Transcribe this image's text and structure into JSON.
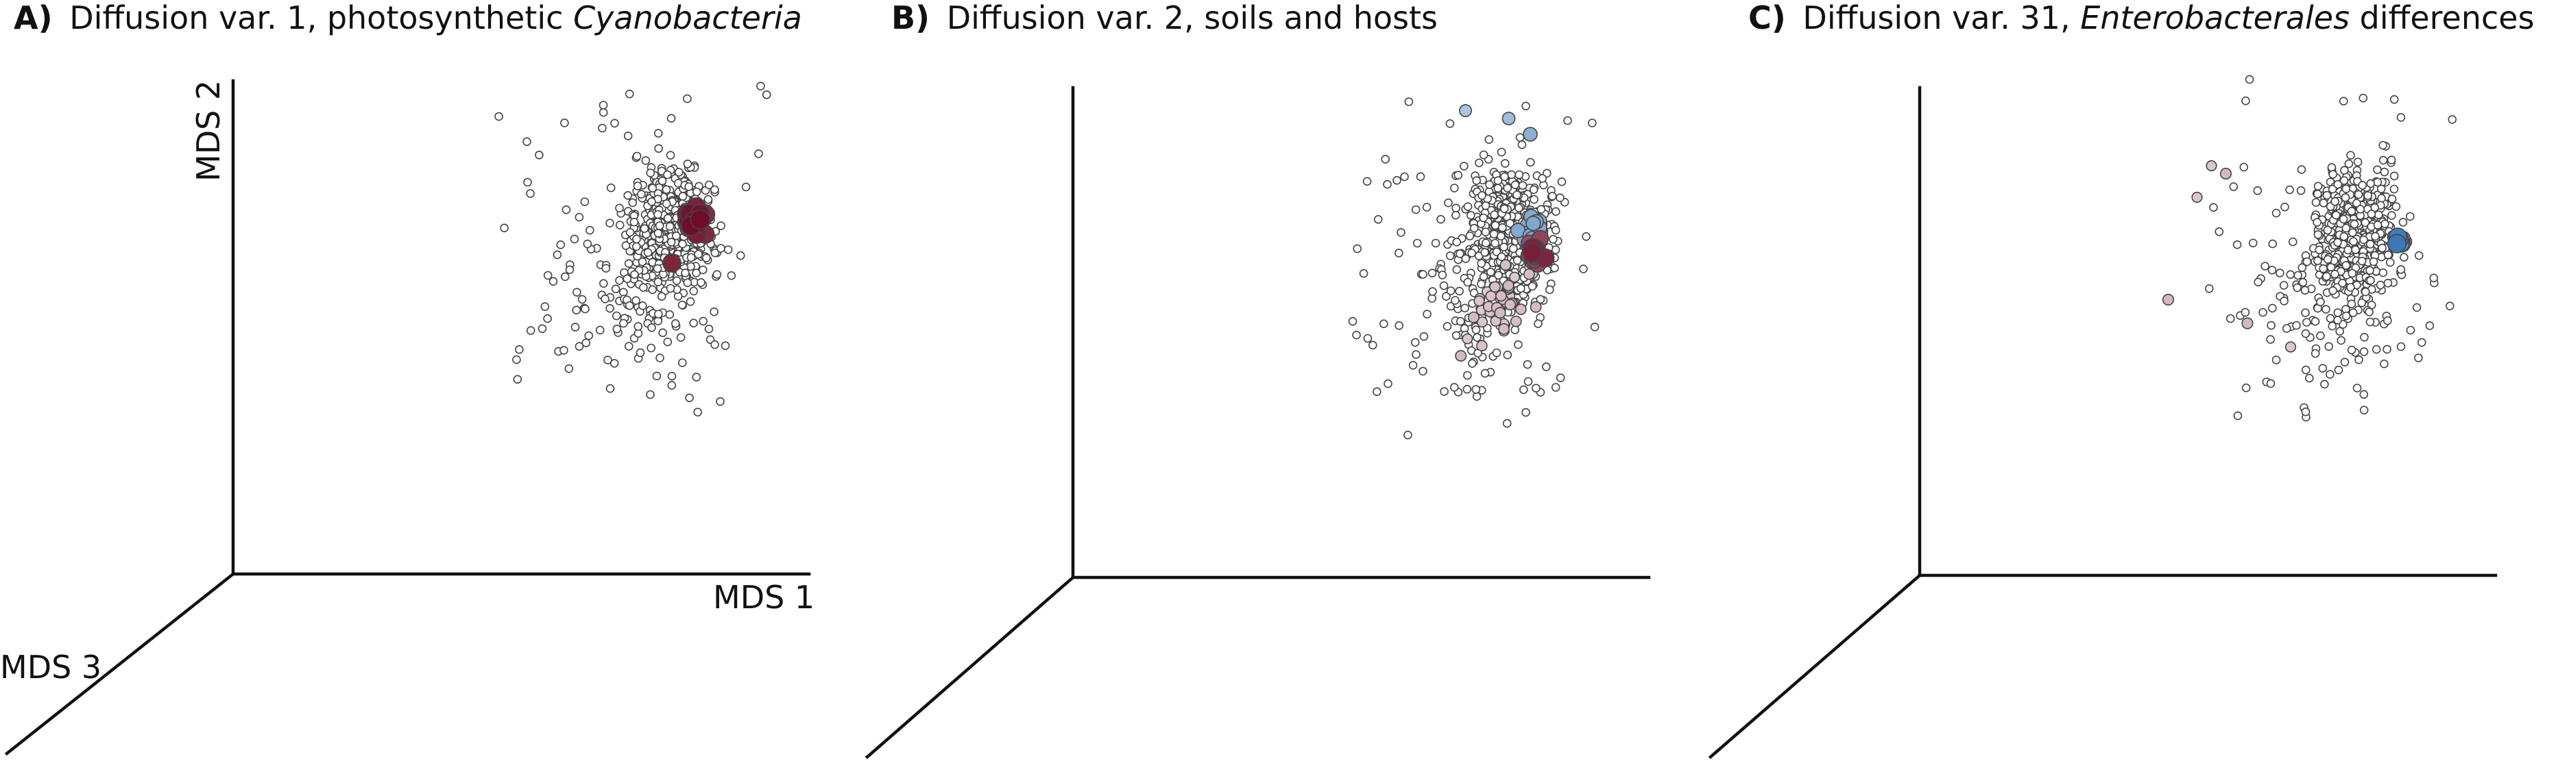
{
  "chart_data": [
    {
      "type": "scatter",
      "panel_label": "A)",
      "title": "Diffusion var. 1, photosynthetic ",
      "title_italic": "Cyanobacteria",
      "xlabel": "MDS 1",
      "ylabel": "MDS 2",
      "zlabel": "MDS 3",
      "grid": false,
      "color_scale": {
        "low": "#2166ac",
        "mid": "#f7f7f7",
        "high": "#67001f"
      },
      "highlight": {
        "cluster": {
          "x": 0.72,
          "y": 0.25,
          "spread": 0.035,
          "count": 40,
          "value": 0.95
        },
        "points": [
          {
            "x": 0.6,
            "y": 0.0,
            "z": 0.1,
            "value": 0.85
          }
        ]
      }
    },
    {
      "type": "scatter",
      "panel_label": "B)",
      "title": "Diffusion var. 2, soils and hosts",
      "title_italic": "",
      "xlabel": "",
      "ylabel": "",
      "zlabel": "",
      "grid": false,
      "color_scale": {
        "low": "#2166ac",
        "mid": "#f7f7f7",
        "high": "#67001f"
      },
      "highlight": {
        "cluster": {
          "x": 0.72,
          "y": 0.2,
          "spread": 0.04,
          "count": 45,
          "value": -0.55
        },
        "cluster2": {
          "x": 0.74,
          "y": 0.05,
          "spread": 0.03,
          "count": 20,
          "value": 0.9
        },
        "tail": {
          "x": 0.5,
          "y": -0.25,
          "spread": 0.12,
          "count": 40,
          "value": 0.25
        },
        "points": [
          {
            "x": 0.25,
            "y": 0.95,
            "z": 0.0,
            "value": -0.35
          },
          {
            "x": 0.55,
            "y": 0.9,
            "z": 0.0,
            "value": -0.4
          },
          {
            "x": 0.7,
            "y": 0.8,
            "z": 0.0,
            "value": -0.5
          }
        ]
      }
    },
    {
      "type": "scatter",
      "panel_label": "C)",
      "title": "Diffusion var. 31, ",
      "title_italic": "Enterobacterales",
      "title_suffix": " differences",
      "xlabel": "",
      "ylabel": "",
      "zlabel": "",
      "grid": false,
      "color_scale": {
        "low": "#2166ac",
        "mid": "#f7f7f7",
        "high": "#67001f"
      },
      "highlight": {
        "cluster": {
          "x": 0.85,
          "y": 0.12,
          "spread": 0.015,
          "count": 8,
          "value": -0.9
        },
        "cluster2": {
          "x": 0.88,
          "y": 0.12,
          "spread": 0.012,
          "count": 6,
          "value": 0.45
        },
        "points": [
          {
            "x": -0.45,
            "y": 0.6,
            "z": 0.0,
            "value": 0.2
          },
          {
            "x": -0.35,
            "y": 0.55,
            "z": 0.0,
            "value": 0.25
          },
          {
            "x": -0.55,
            "y": 0.4,
            "z": 0.0,
            "value": 0.2
          },
          {
            "x": -0.75,
            "y": -0.25,
            "z": 0.0,
            "value": 0.25
          },
          {
            "x": -0.2,
            "y": -0.4,
            "z": 0.0,
            "value": 0.25
          },
          {
            "x": 0.1,
            "y": -0.55,
            "z": 0.0,
            "value": 0.2
          }
        ]
      }
    }
  ]
}
